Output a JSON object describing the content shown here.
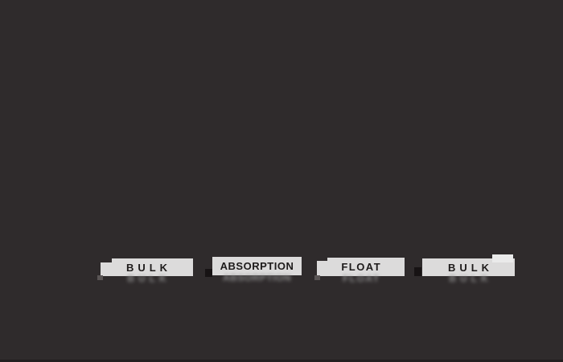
{
  "scene": {
    "description": "Dark slide fragment of a flotation-circuit diagram with four stage labels",
    "background_color": "#2F2B2C",
    "bottom_edge_color": "#231F20"
  },
  "labels": [
    {
      "id": "bulk-1",
      "text": "BULK"
    },
    {
      "id": "absorption",
      "text": "ABSORPTION"
    },
    {
      "id": "float",
      "text": "FLOAT"
    },
    {
      "id": "bulk-2",
      "text": "BULK"
    }
  ],
  "colors": {
    "label_fill": "#DCDBDB",
    "label_text": "#1D1A1A",
    "reflection": "#9A9A9A",
    "dark_marker": "#171314",
    "gray_marker": "#5A5555",
    "light_marker": "#EAEAEA"
  }
}
